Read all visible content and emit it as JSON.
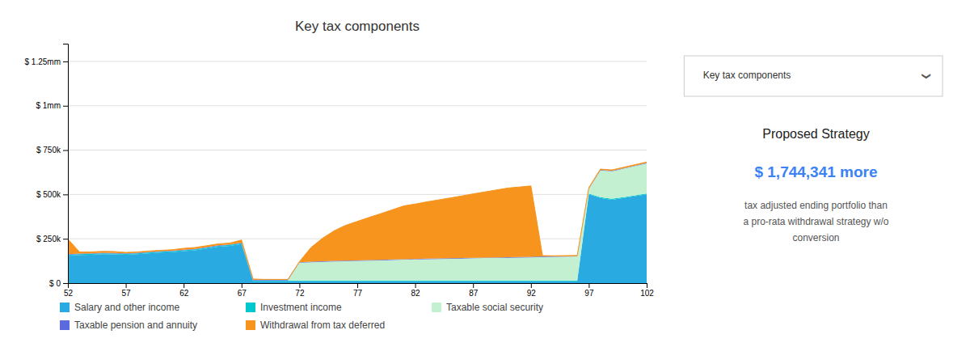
{
  "chart_data": {
    "type": "area",
    "stacked": true,
    "title": "Key tax components",
    "x": [
      52,
      53,
      54,
      55,
      56,
      57,
      58,
      59,
      60,
      61,
      62,
      63,
      64,
      65,
      66,
      67,
      68,
      69,
      70,
      71,
      72,
      73,
      74,
      75,
      76,
      77,
      78,
      79,
      80,
      81,
      82,
      83,
      84,
      85,
      86,
      87,
      88,
      89,
      90,
      91,
      92,
      93,
      94,
      95,
      96,
      97,
      98,
      99,
      100,
      101,
      102
    ],
    "series": [
      {
        "name": "Salary and other income",
        "color": "#29ABE2",
        "values": [
          155000,
          158000,
          160000,
          163000,
          162000,
          160000,
          163000,
          168000,
          172000,
          175000,
          180000,
          185000,
          195000,
          205000,
          210000,
          220000,
          10000,
          10000,
          10000,
          10000,
          10000,
          10000,
          10000,
          10000,
          10000,
          10000,
          10000,
          10000,
          10000,
          10000,
          10000,
          10000,
          10000,
          10000,
          10000,
          10000,
          10000,
          10000,
          10000,
          10000,
          10000,
          10000,
          10000,
          10000,
          10000,
          500000,
          480000,
          470000,
          480000,
          490000,
          500000
        ]
      },
      {
        "name": "Investment income",
        "color": "#00C8CC",
        "values": [
          5000,
          5000,
          5000,
          5000,
          5000,
          5000,
          5000,
          5000,
          5000,
          5000,
          5000,
          5000,
          5000,
          5000,
          5000,
          5000,
          5000,
          5000,
          5000,
          5000,
          5000,
          5000,
          5000,
          5000,
          5000,
          5000,
          5000,
          5000,
          5000,
          5000,
          5000,
          5000,
          5000,
          5000,
          5000,
          5000,
          5000,
          5000,
          5000,
          5000,
          5000,
          5000,
          5000,
          5000,
          5000,
          5000,
          5000,
          5000,
          5000,
          5000,
          5000
        ]
      },
      {
        "name": "Taxable social security",
        "color": "#C2F0D0",
        "values": [
          0,
          0,
          0,
          0,
          0,
          0,
          0,
          0,
          0,
          0,
          0,
          0,
          0,
          0,
          0,
          0,
          0,
          0,
          0,
          0,
          100000,
          103000,
          105000,
          107000,
          108000,
          110000,
          112000,
          113000,
          115000,
          117000,
          118000,
          120000,
          121000,
          122000,
          123000,
          125000,
          126000,
          127000,
          128000,
          129000,
          130000,
          132000,
          133000,
          134000,
          135000,
          25000,
          150000,
          155000,
          160000,
          165000,
          170000
        ]
      },
      {
        "name": "Taxable pension and annuity",
        "color": "#5B6BDF",
        "values": [
          3000,
          3000,
          3000,
          3000,
          3000,
          3000,
          3000,
          3000,
          3000,
          3000,
          3000,
          3000,
          3000,
          3000,
          3000,
          3000,
          3000,
          3000,
          3000,
          3000,
          3000,
          3000,
          3000,
          3000,
          3000,
          3000,
          3000,
          3000,
          3000,
          3000,
          3000,
          3000,
          3000,
          3000,
          3000,
          3000,
          3000,
          3000,
          3000,
          3000,
          3000,
          3000,
          3000,
          3000,
          3000,
          3000,
          3000,
          3000,
          3000,
          3000,
          3000
        ]
      },
      {
        "name": "Withdrawal from tax deferred",
        "color": "#F7941D",
        "values": [
          85000,
          10000,
          8000,
          8000,
          8000,
          5000,
          5000,
          5000,
          5000,
          5000,
          8000,
          8000,
          8000,
          8000,
          8000,
          15000,
          5000,
          3000,
          3000,
          3000,
          3000,
          80000,
          130000,
          170000,
          200000,
          220000,
          240000,
          260000,
          280000,
          300000,
          310000,
          320000,
          330000,
          340000,
          350000,
          360000,
          370000,
          380000,
          390000,
          395000,
          400000,
          5000,
          3000,
          3000,
          3000,
          5000,
          5000,
          5000,
          5000,
          5000,
          5000
        ]
      }
    ],
    "xlim": [
      52,
      102
    ],
    "xticks": [
      52,
      57,
      62,
      67,
      72,
      77,
      82,
      87,
      92,
      97,
      102
    ],
    "ylim": [
      0,
      1350000
    ],
    "yticks": [
      {
        "value": 0,
        "label": "$ 0"
      },
      {
        "value": 250000,
        "label": "$ 250k"
      },
      {
        "value": 500000,
        "label": "$ 500k"
      },
      {
        "value": 750000,
        "label": "$ 750k"
      },
      {
        "value": 1000000,
        "label": "$ 1mm"
      },
      {
        "value": 1250000,
        "label": "$ 1.25mm"
      }
    ],
    "grid": true,
    "legend": "bottom",
    "annotations": [
      "Key tax components",
      "❯",
      "Proposed Strategy",
      "$ 1,744,341 more",
      "tax adjusted ending portfolio than\na pro-rata withdrawal strategy w/o\nconversion"
    ]
  }
}
